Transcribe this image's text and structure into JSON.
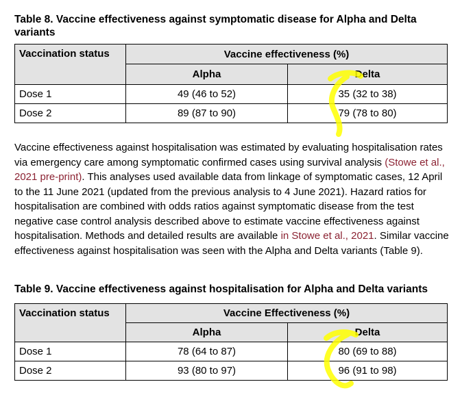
{
  "table8": {
    "caption": "Table 8. Vaccine effectiveness against symptomatic disease for Alpha and Delta variants",
    "col_status": "Vaccination status",
    "col_ve": "Vaccine effectiveness (%)",
    "col_alpha": "Alpha",
    "col_delta": "Delta",
    "rows": [
      {
        "status": "Dose 1",
        "alpha": "49 (46 to 52)",
        "delta": "35 (32 to 38)"
      },
      {
        "status": "Dose 2",
        "alpha": "89 (87 to 90)",
        "delta": "79 (78 to 80)"
      }
    ]
  },
  "paragraph": {
    "p1": "Vaccine effectiveness against hospitalisation was estimated by evaluating hospitalisation rates via emergency care among symptomatic confirmed cases using survival analysis ",
    "link1": "(Stowe et al., 2021 pre-print)",
    "p2": ". This analyses used available data from linkage of symptomatic cases, 12 April to the 11 June 2021 (updated from the previous analysis to 4 June 2021). Hazard ratios for hospitalisation are combined with odds ratios against symptomatic disease from the test negative case control analysis described above to estimate vaccine effectiveness against hospitalisation. Methods and detailed results are available ",
    "link2": "in Stowe et al., 2021",
    "p3": ". Similar vaccine effectiveness against hospitalisation was seen with the Alpha and Delta variants (Table 9)."
  },
  "table9": {
    "caption": "Table 9. Vaccine effectiveness against hospitalisation for Alpha and Delta variants",
    "col_status": "Vaccination status",
    "col_ve": "Vaccine Effectiveness (%)",
    "col_alpha": "Alpha",
    "col_delta": "Delta",
    "rows": [
      {
        "status": "Dose 1",
        "alpha": "78 (64 to 87)",
        "delta": "80 (69 to 88)"
      },
      {
        "status": "Dose 2",
        "alpha": "93 (80 to 97)",
        "delta": "96 (91 to 98)"
      }
    ]
  },
  "colors": {
    "link": "#8b2232",
    "header_bg": "#e3e3e3",
    "highlighter": "#ffff00"
  }
}
